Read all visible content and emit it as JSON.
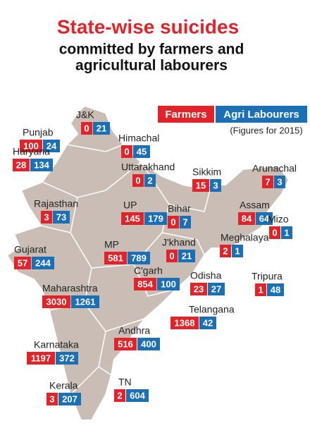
{
  "title": [
    "State-wise suicides",
    "committed by farmers and",
    "agricultural labourers"
  ],
  "legend": {
    "farmers": "Farmers",
    "labourers": "Agri Labourers"
  },
  "note": "(Figures for 2015)",
  "states": [
    {
      "name": "J&K",
      "farmers": 0,
      "labourers": 21
    },
    {
      "name": "Punjab",
      "farmers": 100,
      "labourers": 24
    },
    {
      "name": "Himachal",
      "farmers": 0,
      "labourers": 45
    },
    {
      "name": "Haryana",
      "farmers": 28,
      "labourers": 134
    },
    {
      "name": "Uttarakhand",
      "farmers": 0,
      "labourers": 2
    },
    {
      "name": "Sikkim",
      "farmers": 15,
      "labourers": 3
    },
    {
      "name": "Arunachal",
      "farmers": 7,
      "labourers": 3
    },
    {
      "name": "Rajasthan",
      "farmers": 3,
      "labourers": 73
    },
    {
      "name": "UP",
      "farmers": 145,
      "labourers": 179
    },
    {
      "name": "Bihar",
      "farmers": 0,
      "labourers": 7
    },
    {
      "name": "Assam",
      "farmers": 84,
      "labourers": 64
    },
    {
      "name": "Mizo",
      "farmers": 0,
      "labourers": 1
    },
    {
      "name": "J'khand",
      "farmers": 0,
      "labourers": 21
    },
    {
      "name": "Meghalaya",
      "farmers": 2,
      "labourers": 1
    },
    {
      "name": "Gujarat",
      "farmers": 57,
      "labourers": 244
    },
    {
      "name": "MP",
      "farmers": 581,
      "labourers": 789
    },
    {
      "name": "C'garh",
      "farmers": 854,
      "labourers": 100
    },
    {
      "name": "Odisha",
      "farmers": 23,
      "labourers": 27
    },
    {
      "name": "Tripura",
      "farmers": 1,
      "labourers": 48
    },
    {
      "name": "Maharashtra",
      "farmers": 3030,
      "labourers": 1261
    },
    {
      "name": "Telangana",
      "farmers": 1368,
      "labourers": 42
    },
    {
      "name": "Andhra",
      "farmers": 516,
      "labourers": 400
    },
    {
      "name": "Karnataka",
      "farmers": 1197,
      "labourers": 372
    },
    {
      "name": "Kerala",
      "farmers": 3,
      "labourers": 207
    },
    {
      "name": "TN",
      "farmers": 2,
      "labourers": 604
    }
  ]
}
